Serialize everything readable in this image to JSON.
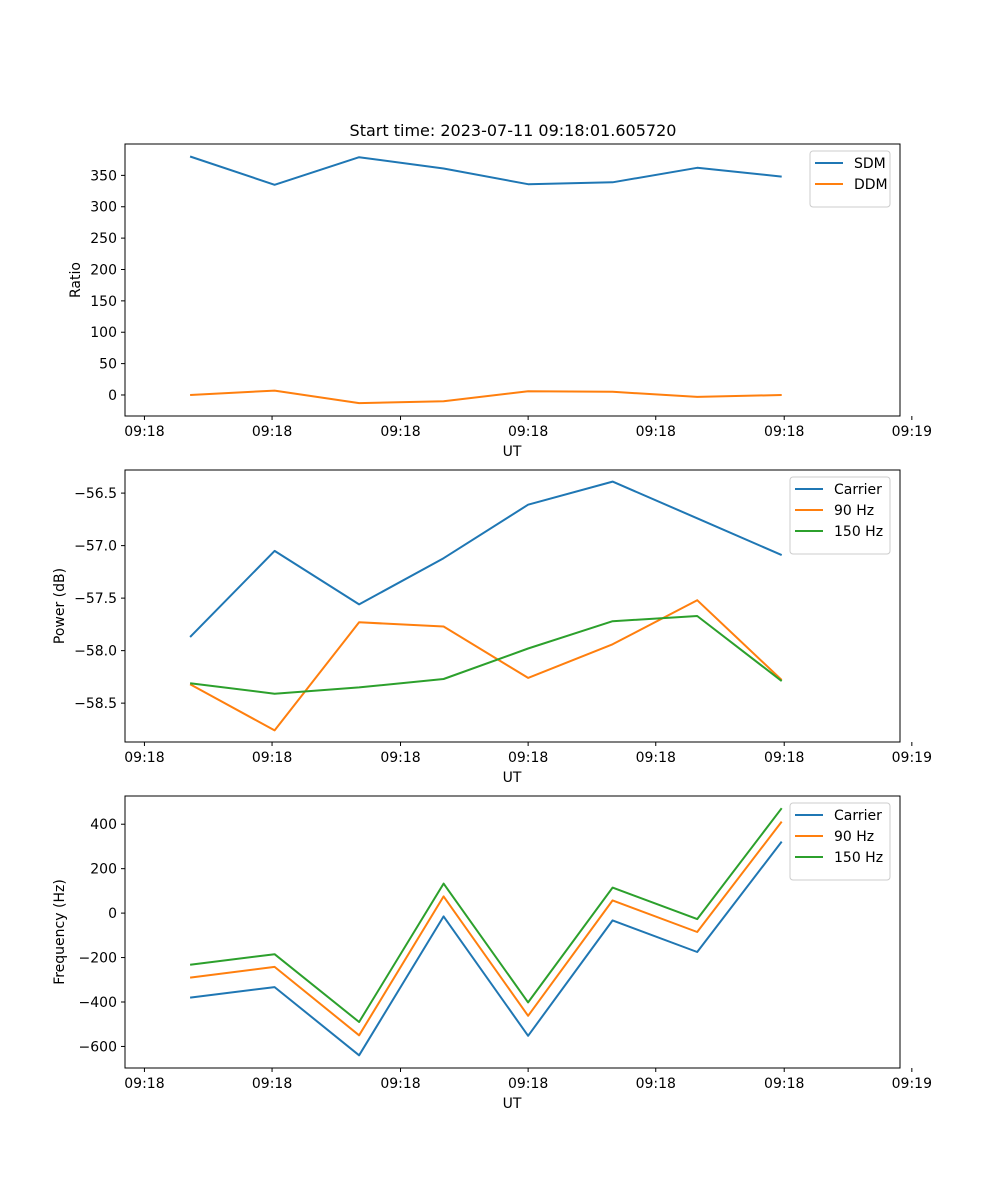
{
  "figure": {
    "title": "Start time: 2023-07-11 09:18:01.605720"
  },
  "colors": {
    "blue": "#1f77b4",
    "orange": "#ff7f0e",
    "green": "#2ca02c"
  },
  "chart_data": [
    {
      "type": "line",
      "title": "Start time: 2023-07-11 09:18:01.605720",
      "xlabel": "UT",
      "ylabel": "Ratio",
      "x": [
        1,
        2,
        3,
        4,
        5,
        6,
        7,
        8
      ],
      "xlim": [
        0.23,
        9.4
      ],
      "x_ticks": [
        0.46,
        1.97,
        3.49,
        5.0,
        6.51,
        8.03,
        9.54
      ],
      "x_tick_labels": [
        "09:18",
        "09:18",
        "09:18",
        "09:18",
        "09:18",
        "09:18",
        "09:19"
      ],
      "ylim": [
        -33.5,
        400
      ],
      "y_ticks": [
        0,
        50,
        100,
        150,
        200,
        250,
        300,
        350
      ],
      "y_tick_labels": [
        "0",
        "50",
        "100",
        "150",
        "200",
        "250",
        "300",
        "350"
      ],
      "legend_position": "upper-right",
      "series": [
        {
          "name": "SDM",
          "color": "#1f77b4",
          "values": [
            380,
            335,
            379,
            361,
            336,
            339,
            362,
            348
          ]
        },
        {
          "name": "DDM",
          "color": "#ff7f0e",
          "values": [
            0,
            7,
            -13,
            -10,
            6,
            5,
            -3,
            0
          ]
        }
      ]
    },
    {
      "type": "line",
      "title": "",
      "xlabel": "UT",
      "ylabel": "Power (dB)",
      "x": [
        1,
        2,
        3,
        4,
        5,
        6,
        7,
        8
      ],
      "xlim": [
        0.23,
        9.4
      ],
      "x_ticks": [
        0.46,
        1.97,
        3.49,
        5.0,
        6.51,
        8.03,
        9.54
      ],
      "x_tick_labels": [
        "09:18",
        "09:18",
        "09:18",
        "09:18",
        "09:18",
        "09:18",
        "09:19"
      ],
      "ylim": [
        -58.87,
        -56.28
      ],
      "y_ticks": [
        -58.5,
        -58.0,
        -57.5,
        -57.0,
        -56.5
      ],
      "y_tick_labels": [
        "−58.5",
        "−58.0",
        "−57.5",
        "−57.0",
        "−56.5"
      ],
      "legend_position": "upper-right",
      "series": [
        {
          "name": "Carrier",
          "color": "#1f77b4",
          "values": [
            -57.87,
            -57.05,
            -57.56,
            -57.12,
            -56.61,
            -56.39,
            -56.74,
            -57.09
          ]
        },
        {
          "name": "90 Hz",
          "color": "#ff7f0e",
          "values": [
            -58.32,
            -58.76,
            -57.73,
            -57.77,
            -58.26,
            -57.94,
            -57.52,
            -58.28
          ]
        },
        {
          "name": "150 Hz",
          "color": "#2ca02c",
          "values": [
            -58.31,
            -58.41,
            -58.35,
            -58.27,
            -57.98,
            -57.72,
            -57.67,
            -58.29
          ]
        }
      ]
    },
    {
      "type": "line",
      "title": "",
      "xlabel": "UT",
      "ylabel": "Frequency (Hz)",
      "x": [
        1,
        2,
        3,
        4,
        5,
        6,
        7,
        8
      ],
      "xlim": [
        0.23,
        9.4
      ],
      "x_ticks": [
        0.46,
        1.97,
        3.49,
        5.0,
        6.51,
        8.03,
        9.54
      ],
      "x_tick_labels": [
        "09:18",
        "09:18",
        "09:18",
        "09:18",
        "09:18",
        "09:18",
        "09:19"
      ],
      "ylim": [
        -697,
        527
      ],
      "y_ticks": [
        -600,
        -400,
        -200,
        0,
        200,
        400
      ],
      "y_tick_labels": [
        "−600",
        "−400",
        "−200",
        "0",
        "200",
        "400"
      ],
      "legend_position": "upper-right",
      "series": [
        {
          "name": "Carrier",
          "color": "#1f77b4",
          "values": [
            -380,
            -333,
            -640,
            -15,
            -552,
            -33,
            -175,
            322
          ]
        },
        {
          "name": "90 Hz",
          "color": "#ff7f0e",
          "values": [
            -290,
            -242,
            -550,
            75,
            -462,
            57,
            -85,
            412
          ]
        },
        {
          "name": "150 Hz",
          "color": "#2ca02c",
          "values": [
            -232,
            -185,
            -490,
            133,
            -402,
            115,
            -27,
            472
          ]
        }
      ]
    }
  ]
}
